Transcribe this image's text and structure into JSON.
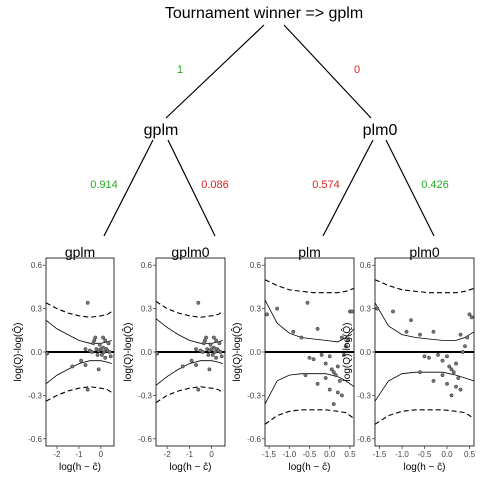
{
  "title": "Tournament winner  =>  gplm",
  "tree": {
    "level1": {
      "left_prob": "1",
      "right_prob": "0",
      "left_node": "gplm",
      "right_node": "plm0"
    },
    "level2": {
      "probs": [
        "0.914",
        "0.086",
        "0.574",
        "0.426"
      ]
    }
  },
  "colors": {
    "winner_prob": "#22aa22",
    "loser_prob": "#dd2222",
    "points": "#555555",
    "lines": "#000000"
  },
  "y_axis_label": "log(Q)-log(Q̂)",
  "x_axis_label": "log(h − ĉ)",
  "panels": [
    {
      "title": "gplm",
      "x_ticks": [
        "-2",
        "-1",
        "0"
      ],
      "y_ticks": [
        "0.6",
        "0.3",
        "0.0",
        "-0.3",
        "-0.6"
      ],
      "chart_data": {
        "type": "scatter",
        "xlim": [
          -2.5,
          0.6
        ],
        "ylim": [
          -0.65,
          0.65
        ],
        "points": [
          [
            -2.45,
            -0.01
          ],
          [
            -0.6,
            0.34
          ],
          [
            -0.7,
            0.02
          ],
          [
            -0.5,
            0.01
          ],
          [
            -0.4,
            0.0
          ],
          [
            -0.35,
            0.06
          ],
          [
            -0.25,
            0.1
          ],
          [
            -0.2,
            0.02
          ],
          [
            -0.15,
            -0.02
          ],
          [
            -0.1,
            0.01
          ],
          [
            -0.05,
            0.05
          ],
          [
            0.0,
            0.02
          ],
          [
            0.05,
            -0.02
          ],
          [
            0.1,
            0.03
          ],
          [
            0.15,
            0.0
          ],
          [
            0.2,
            -0.04
          ],
          [
            0.25,
            0.02
          ],
          [
            0.3,
            0.01
          ],
          [
            0.35,
            0.06
          ],
          [
            0.4,
            0.0
          ],
          [
            0.45,
            -0.03
          ],
          [
            -0.9,
            -0.06
          ],
          [
            -0.7,
            -0.09
          ],
          [
            -1.3,
            -0.1
          ],
          [
            -0.6,
            -0.26
          ],
          [
            -0.1,
            -0.12
          ],
          [
            -0.3,
            0.08
          ],
          [
            0.1,
            0.1
          ],
          [
            0.2,
            0.08
          ]
        ],
        "series": [
          {
            "style": "solid",
            "x": [
              -2.5,
              -2.0,
              -1.5,
              -1.0,
              -0.5,
              0.0,
              0.3,
              0.5
            ],
            "y": [
              0.22,
              0.16,
              0.12,
              0.08,
              0.06,
              0.06,
              0.07,
              0.08
            ]
          },
          {
            "style": "solid",
            "x": [
              -2.5,
              -2.0,
              -1.5,
              -1.0,
              -0.5,
              0.0,
              0.3,
              0.5
            ],
            "y": [
              -0.22,
              -0.16,
              -0.12,
              -0.08,
              -0.06,
              -0.06,
              -0.07,
              -0.08
            ]
          },
          {
            "style": "dashed",
            "x": [
              -2.5,
              -2.0,
              -1.5,
              -1.0,
              -0.5,
              0.0,
              0.3,
              0.5
            ],
            "y": [
              0.34,
              0.3,
              0.27,
              0.25,
              0.24,
              0.25,
              0.26,
              0.28
            ]
          },
          {
            "style": "dashed",
            "x": [
              -2.5,
              -2.0,
              -1.5,
              -1.0,
              -0.5,
              0.0,
              0.3,
              0.5
            ],
            "y": [
              -0.34,
              -0.3,
              -0.27,
              -0.25,
              -0.24,
              -0.25,
              -0.26,
              -0.28
            ]
          }
        ]
      }
    },
    {
      "title": "gplm0",
      "x_ticks": [
        "-2",
        "-1",
        "0"
      ],
      "y_ticks": [
        "0.6",
        "0.3",
        "0.0",
        "-0.3",
        "-0.6"
      ],
      "chart_data": {
        "type": "scatter",
        "xlim": [
          -2.5,
          0.6
        ],
        "ylim": [
          -0.65,
          0.65
        ],
        "points": [
          [
            -2.45,
            -0.01
          ],
          [
            -0.6,
            0.34
          ],
          [
            -0.7,
            0.02
          ],
          [
            -0.5,
            0.01
          ],
          [
            -0.4,
            0.0
          ],
          [
            -0.35,
            0.06
          ],
          [
            -0.25,
            0.1
          ],
          [
            -0.2,
            0.02
          ],
          [
            -0.15,
            -0.02
          ],
          [
            -0.1,
            0.01
          ],
          [
            -0.05,
            0.05
          ],
          [
            0.0,
            0.02
          ],
          [
            0.05,
            -0.02
          ],
          [
            0.1,
            0.03
          ],
          [
            0.15,
            0.0
          ],
          [
            0.2,
            -0.04
          ],
          [
            0.25,
            0.02
          ],
          [
            0.3,
            0.01
          ],
          [
            0.35,
            0.06
          ],
          [
            0.4,
            0.0
          ],
          [
            0.45,
            -0.03
          ],
          [
            -0.9,
            -0.06
          ],
          [
            -0.7,
            -0.09
          ],
          [
            -1.3,
            -0.1
          ],
          [
            -0.6,
            -0.26
          ],
          [
            -0.1,
            -0.12
          ],
          [
            -0.3,
            0.08
          ],
          [
            0.1,
            0.1
          ],
          [
            0.2,
            0.08
          ]
        ],
        "series": [
          {
            "style": "solid",
            "x": [
              -2.5,
              -2.0,
              -1.5,
              -1.0,
              -0.5,
              0.0,
              0.3,
              0.5
            ],
            "y": [
              0.23,
              0.17,
              0.12,
              0.08,
              0.06,
              0.06,
              0.07,
              0.08
            ]
          },
          {
            "style": "solid",
            "x": [
              -2.5,
              -2.0,
              -1.5,
              -1.0,
              -0.5,
              0.0,
              0.3,
              0.5
            ],
            "y": [
              -0.23,
              -0.17,
              -0.12,
              -0.08,
              -0.06,
              -0.06,
              -0.07,
              -0.08
            ]
          },
          {
            "style": "dashed",
            "x": [
              -2.5,
              -2.0,
              -1.5,
              -1.0,
              -0.5,
              0.0,
              0.3,
              0.5
            ],
            "y": [
              0.35,
              0.3,
              0.27,
              0.25,
              0.24,
              0.25,
              0.26,
              0.28
            ]
          },
          {
            "style": "dashed",
            "x": [
              -2.5,
              -2.0,
              -1.5,
              -1.0,
              -0.5,
              0.0,
              0.3,
              0.5
            ],
            "y": [
              -0.35,
              -0.3,
              -0.27,
              -0.25,
              -0.24,
              -0.25,
              -0.26,
              -0.28
            ]
          }
        ]
      }
    },
    {
      "title": "plm",
      "x_ticks": [
        "-1.5",
        "-1.0",
        "-0.5",
        "0.0",
        "0.5"
      ],
      "y_ticks": [
        "0.6",
        "0.3",
        "0.0",
        "-0.3",
        "-0.6"
      ],
      "chart_data": {
        "type": "scatter",
        "xlim": [
          -1.6,
          0.6
        ],
        "ylim": [
          -0.65,
          0.65
        ],
        "points": [
          [
            -1.55,
            0.26
          ],
          [
            -0.55,
            0.34
          ],
          [
            -1.3,
            0.3
          ],
          [
            -0.9,
            0.14
          ],
          [
            -0.7,
            0.1
          ],
          [
            -0.3,
            0.16
          ],
          [
            -0.2,
            -0.02
          ],
          [
            -0.5,
            -0.04
          ],
          [
            -0.4,
            -0.05
          ],
          [
            -0.1,
            -0.08
          ],
          [
            0.0,
            -0.03
          ],
          [
            0.05,
            -0.12
          ],
          [
            0.1,
            -0.14
          ],
          [
            0.15,
            -0.16
          ],
          [
            0.2,
            -0.1
          ],
          [
            0.25,
            -0.2
          ],
          [
            0.3,
            0.1
          ],
          [
            0.35,
            -0.02
          ],
          [
            0.4,
            0.04
          ],
          [
            0.45,
            0.08
          ],
          [
            0.5,
            0.28
          ],
          [
            0.55,
            0.28
          ],
          [
            -0.6,
            -0.16
          ],
          [
            -0.3,
            -0.22
          ],
          [
            0.1,
            -0.36
          ],
          [
            0.2,
            -0.28
          ],
          [
            0.3,
            -0.3
          ],
          [
            0.0,
            -0.26
          ],
          [
            -0.1,
            -0.18
          ]
        ],
        "series": [
          {
            "style": "solid",
            "x": [
              -1.6,
              -1.3,
              -1.0,
              -0.7,
              -0.4,
              -0.1,
              0.2,
              0.4,
              0.6
            ],
            "y": [
              0.36,
              0.2,
              0.13,
              0.1,
              0.09,
              0.08,
              0.07,
              0.1,
              0.16
            ]
          },
          {
            "style": "solid",
            "x": [
              -1.6,
              -1.3,
              -1.0,
              -0.7,
              -0.4,
              -0.1,
              0.2,
              0.4,
              0.6
            ],
            "y": [
              -0.36,
              -0.2,
              -0.16,
              -0.15,
              -0.15,
              -0.15,
              -0.17,
              -0.2,
              -0.24
            ]
          },
          {
            "style": "dashed",
            "x": [
              -1.6,
              -1.3,
              -1.0,
              -0.7,
              -0.4,
              -0.1,
              0.2,
              0.4,
              0.6
            ],
            "y": [
              0.5,
              0.46,
              0.43,
              0.42,
              0.41,
              0.41,
              0.41,
              0.42,
              0.44
            ]
          },
          {
            "style": "dashed",
            "x": [
              -1.6,
              -1.3,
              -1.0,
              -0.7,
              -0.4,
              -0.1,
              0.2,
              0.4,
              0.6
            ],
            "y": [
              -0.5,
              -0.44,
              -0.41,
              -0.4,
              -0.4,
              -0.4,
              -0.41,
              -0.42,
              -0.46
            ]
          }
        ]
      }
    },
    {
      "title": "plm0",
      "x_ticks": [
        "-1.5",
        "-1.0",
        "-0.5",
        "0.0",
        "0.5"
      ],
      "y_ticks": [
        "0.6",
        "0.3",
        "0.0",
        "-0.3",
        "-0.6"
      ],
      "chart_data": {
        "type": "scatter",
        "xlim": [
          -1.6,
          0.6
        ],
        "ylim": [
          -0.65,
          0.65
        ],
        "points": [
          [
            -1.55,
            0.3
          ],
          [
            -0.8,
            0.22
          ],
          [
            -1.2,
            0.28
          ],
          [
            -0.9,
            0.14
          ],
          [
            -0.6,
            0.12
          ],
          [
            -0.3,
            0.14
          ],
          [
            -0.2,
            -0.02
          ],
          [
            -0.5,
            -0.03
          ],
          [
            -0.4,
            -0.04
          ],
          [
            -0.1,
            -0.06
          ],
          [
            0.0,
            -0.03
          ],
          [
            0.05,
            -0.1
          ],
          [
            0.1,
            -0.12
          ],
          [
            0.15,
            -0.14
          ],
          [
            0.2,
            -0.08
          ],
          [
            0.25,
            -0.18
          ],
          [
            0.3,
            0.12
          ],
          [
            0.35,
            0.0
          ],
          [
            0.4,
            0.04
          ],
          [
            0.45,
            0.1
          ],
          [
            0.5,
            0.26
          ],
          [
            0.55,
            0.24
          ],
          [
            -0.6,
            -0.14
          ],
          [
            -0.3,
            -0.2
          ],
          [
            0.1,
            -0.3
          ],
          [
            0.2,
            -0.24
          ],
          [
            0.3,
            -0.26
          ],
          [
            0.0,
            -0.22
          ],
          [
            -0.1,
            -0.16
          ]
        ],
        "series": [
          {
            "style": "solid",
            "x": [
              -1.6,
              -1.3,
              -1.0,
              -0.7,
              -0.4,
              -0.1,
              0.2,
              0.4,
              0.6
            ],
            "y": [
              0.34,
              0.18,
              0.12,
              0.1,
              0.09,
              0.08,
              0.08,
              0.1,
              0.14
            ]
          },
          {
            "style": "solid",
            "x": [
              -1.6,
              -1.3,
              -1.0,
              -0.7,
              -0.4,
              -0.1,
              0.2,
              0.4,
              0.6
            ],
            "y": [
              -0.34,
              -0.2,
              -0.15,
              -0.14,
              -0.14,
              -0.14,
              -0.16,
              -0.18,
              -0.2
            ]
          },
          {
            "style": "dashed",
            "x": [
              -1.6,
              -1.3,
              -1.0,
              -0.7,
              -0.4,
              -0.1,
              0.2,
              0.4,
              0.6
            ],
            "y": [
              0.5,
              0.46,
              0.43,
              0.42,
              0.41,
              0.41,
              0.41,
              0.42,
              0.44
            ]
          },
          {
            "style": "dashed",
            "x": [
              -1.6,
              -1.3,
              -1.0,
              -0.7,
              -0.4,
              -0.1,
              0.2,
              0.4,
              0.6
            ],
            "y": [
              -0.5,
              -0.44,
              -0.41,
              -0.4,
              -0.4,
              -0.4,
              -0.41,
              -0.42,
              -0.46
            ]
          }
        ]
      }
    }
  ]
}
